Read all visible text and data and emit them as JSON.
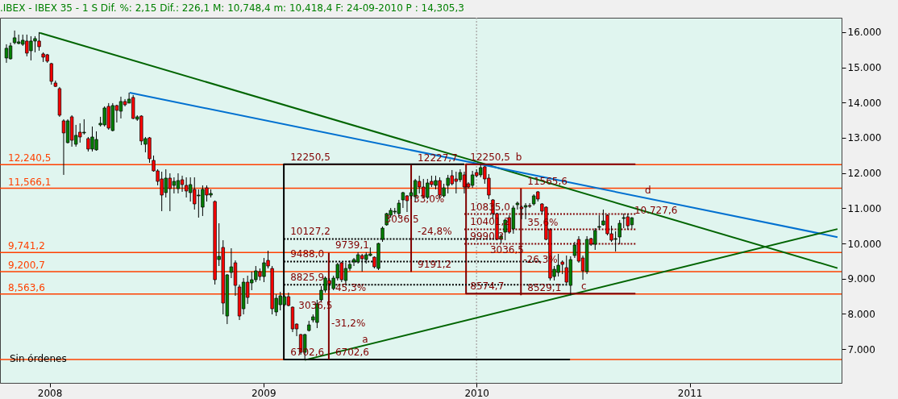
{
  "chart_data": {
    "type": "candlestick",
    "title": ".IBEX - IBEX 35 -  1 S Dif. %: 2,15 Dif.: 226,1 M: 10,748,4 m: 10,418,4 F: 24-09-2010 P : 14,305,3",
    "x": [
      "2007-10-19",
      "2007-10-26",
      "2007-11-02",
      "2007-11-09",
      "2007-11-16",
      "2007-11-23",
      "2007-11-30",
      "2007-12-07",
      "2007-12-14",
      "2007-12-21",
      "2007-12-28",
      "2008-01-04",
      "2008-01-11",
      "2008-01-18",
      "2008-01-25",
      "2008-02-01",
      "2008-02-08",
      "2008-02-15",
      "2008-02-22",
      "2008-02-29",
      "2008-03-07",
      "2008-03-14",
      "2008-03-21",
      "2008-03-28",
      "2008-04-04",
      "2008-04-11",
      "2008-04-18",
      "2008-04-25",
      "2008-05-02",
      "2008-05-09",
      "2008-05-16",
      "2008-05-23",
      "2008-05-30",
      "2008-06-06",
      "2008-06-13",
      "2008-06-20",
      "2008-06-27",
      "2008-07-04",
      "2008-07-11",
      "2008-07-18",
      "2008-07-25",
      "2008-08-01",
      "2008-08-08",
      "2008-08-15",
      "2008-08-22",
      "2008-08-29",
      "2008-09-05",
      "2008-09-12",
      "2008-09-19",
      "2008-09-26",
      "2008-10-03",
      "2008-10-10",
      "2008-10-17",
      "2008-10-24",
      "2008-10-31",
      "2008-11-07",
      "2008-11-14",
      "2008-11-21",
      "2008-11-28",
      "2008-12-05",
      "2008-12-12",
      "2008-12-19",
      "2008-12-26",
      "2009-01-02",
      "2009-01-09",
      "2009-01-16",
      "2009-01-23",
      "2009-01-30",
      "2009-02-06",
      "2009-02-13",
      "2009-02-20",
      "2009-02-27",
      "2009-03-06",
      "2009-03-13",
      "2009-03-20",
      "2009-03-27",
      "2009-04-03",
      "2009-04-10",
      "2009-04-17",
      "2009-04-24",
      "2009-05-01",
      "2009-05-08",
      "2009-05-15",
      "2009-05-22",
      "2009-05-29",
      "2009-06-05",
      "2009-06-12",
      "2009-06-19",
      "2009-06-26",
      "2009-07-03",
      "2009-07-10",
      "2009-07-17",
      "2009-07-24",
      "2009-07-31",
      "2009-08-07",
      "2009-08-14",
      "2009-08-21",
      "2009-08-28",
      "2009-09-04",
      "2009-09-11",
      "2009-09-18",
      "2009-09-25",
      "2009-10-02",
      "2009-10-09",
      "2009-10-16",
      "2009-10-23",
      "2009-10-30",
      "2009-11-06",
      "2009-11-13",
      "2009-11-20",
      "2009-11-27",
      "2009-12-04",
      "2009-12-11",
      "2009-12-18",
      "2009-12-25",
      "2010-01-01",
      "2010-01-08",
      "2010-01-15",
      "2010-01-22",
      "2010-01-29",
      "2010-02-05",
      "2010-02-12",
      "2010-02-19",
      "2010-02-26",
      "2010-03-05",
      "2010-03-12",
      "2010-03-19",
      "2010-03-26",
      "2010-04-02",
      "2010-04-09",
      "2010-04-16",
      "2010-04-23",
      "2010-04-30",
      "2010-05-07",
      "2010-05-14",
      "2010-05-21",
      "2010-05-28",
      "2010-06-04",
      "2010-06-11",
      "2010-06-18",
      "2010-06-25",
      "2010-07-02",
      "2010-07-09",
      "2010-07-16",
      "2010-07-23",
      "2010-07-30",
      "2010-08-06",
      "2010-08-13",
      "2010-08-20",
      "2010-08-27",
      "2010-09-03",
      "2010-09-10",
      "2010-09-17",
      "2010-09-24"
    ],
    "ohlc": [
      [
        15267,
        15656,
        15130,
        15542
      ],
      [
        15244,
        15702,
        15221,
        15611
      ],
      [
        15702,
        16046,
        15656,
        15840
      ],
      [
        15679,
        15931,
        15656,
        15725
      ],
      [
        15656,
        15931,
        15611,
        15771
      ],
      [
        15748,
        15931,
        15313,
        15405
      ],
      [
        15473,
        15885,
        15198,
        15748
      ],
      [
        15748,
        15885,
        15427,
        15817
      ],
      [
        15748,
        16000,
        15473,
        15588
      ],
      [
        15382,
        15427,
        15153,
        15290
      ],
      [
        15359,
        15382,
        15130,
        15176
      ],
      [
        15107,
        15130,
        14511,
        14603
      ],
      [
        14557,
        14626,
        14443,
        14460
      ],
      [
        14397,
        14443,
        13596,
        13641
      ],
      [
        13481,
        13527,
        11947,
        13138
      ],
      [
        12863,
        13527,
        12840,
        13481
      ],
      [
        13596,
        13641,
        12748,
        12931
      ],
      [
        12817,
        13367,
        12748,
        13069
      ],
      [
        13160,
        13412,
        12863,
        13023
      ],
      [
        13138,
        13527,
        13092,
        13160
      ],
      [
        12977,
        13023,
        12611,
        12680
      ],
      [
        12680,
        13321,
        12611,
        13023
      ],
      [
        12657,
        13183,
        12634,
        12954
      ],
      [
        13367,
        13596,
        13321,
        13412
      ],
      [
        13367,
        13893,
        13321,
        13847
      ],
      [
        13893,
        13985,
        13229,
        13275
      ],
      [
        13206,
        13985,
        13183,
        13916
      ],
      [
        13916,
        13939,
        13435,
        13779
      ],
      [
        13756,
        14168,
        13550,
        14031
      ],
      [
        14031,
        14099,
        13893,
        13939
      ],
      [
        13985,
        14282,
        13985,
        14099
      ],
      [
        14145,
        14214,
        13530,
        13550
      ],
      [
        13527,
        13641,
        13481,
        13596
      ],
      [
        13618,
        13641,
        12794,
        12909
      ],
      [
        12817,
        13023,
        12588,
        12977
      ],
      [
        13000,
        13023,
        12290,
        12405
      ],
      [
        12359,
        12496,
        12038,
        12061
      ],
      [
        12061,
        12107,
        11649,
        11763
      ],
      [
        11832,
        12038,
        10916,
        11374
      ],
      [
        11443,
        12107,
        11305,
        11855
      ],
      [
        11855,
        11992,
        10916,
        11557
      ],
      [
        11649,
        11878,
        11420,
        11763
      ],
      [
        11557,
        11992,
        11420,
        11786
      ],
      [
        11809,
        11924,
        11466,
        11672
      ],
      [
        11649,
        11878,
        11305,
        11489
      ],
      [
        11443,
        11878,
        11191,
        11672
      ],
      [
        11535,
        11878,
        10962,
        11122
      ],
      [
        11351,
        11535,
        10733,
        11374
      ],
      [
        11031,
        11649,
        10779,
        11535
      ],
      [
        11580,
        11649,
        11191,
        11374
      ],
      [
        11374,
        11535,
        11305,
        11420
      ],
      [
        11191,
        11220,
        8832,
        8970
      ],
      [
        9542,
        10573,
        9359,
        9634
      ],
      [
        9886,
        10092,
        7985,
        8306
      ],
      [
        7939,
        9130,
        7710,
        9107
      ],
      [
        9176,
        9863,
        9016,
        9336
      ],
      [
        9451,
        9519,
        8512,
        8809
      ],
      [
        8764,
        8832,
        7825,
        7939
      ],
      [
        8145,
        9016,
        7985,
        8901
      ],
      [
        8901,
        9084,
        8283,
        8466
      ],
      [
        8878,
        9199,
        8672,
        8970
      ],
      [
        8970,
        9359,
        8901,
        9222
      ],
      [
        9199,
        9290,
        8947,
        9061
      ],
      [
        9061,
        9588,
        8901,
        9451
      ],
      [
        9519,
        9794,
        9290,
        9359
      ],
      [
        9290,
        9359,
        7985,
        8145
      ],
      [
        8054,
        8557,
        7939,
        8443
      ],
      [
        8260,
        8626,
        8099,
        8512
      ],
      [
        8260,
        8535,
        8214,
        8489
      ],
      [
        8489,
        8603,
        8214,
        8237
      ],
      [
        8191,
        8210,
        7482,
        7573
      ],
      [
        7710,
        7730,
        7367,
        7573
      ],
      [
        7413,
        7430,
        6840,
        6909
      ],
      [
        6909,
        7430,
        6702.6,
        7413
      ],
      [
        7527,
        7802,
        7500,
        7687
      ],
      [
        7825,
        7985,
        7756,
        7916
      ],
      [
        7756,
        8397,
        7596,
        8283
      ],
      [
        8397,
        8787,
        8329,
        8672
      ],
      [
        8672,
        9061,
        8603,
        9016
      ],
      [
        8947,
        9016,
        8672,
        8855
      ],
      [
        8718,
        9084,
        8672,
        9016
      ],
      [
        9016,
        9451,
        8947,
        9405
      ],
      [
        9451,
        9474,
        8901,
        8970
      ],
      [
        8947,
        9451,
        8832,
        9290
      ],
      [
        9290,
        9519,
        9222,
        9405
      ],
      [
        9474,
        9588,
        9359,
        9542
      ],
      [
        9474,
        9749,
        9428,
        9680
      ],
      [
        9657,
        9703,
        9199,
        9565
      ],
      [
        9542,
        9749,
        9428,
        9680
      ],
      [
        9657,
        9886,
        9634,
        9703
      ],
      [
        9611,
        9634,
        9290,
        9336
      ],
      [
        9290,
        10020,
        9245,
        10000
      ],
      [
        10115,
        10481,
        10046,
        10435
      ],
      [
        10527,
        10870,
        10504,
        10848
      ],
      [
        10802,
        11008,
        10733,
        10939
      ],
      [
        10893,
        11008,
        10825,
        10916
      ],
      [
        10848,
        11237,
        10733,
        11145
      ],
      [
        11237,
        11466,
        11008,
        11443
      ],
      [
        11351,
        11374,
        10893,
        11214
      ],
      [
        11351,
        11535,
        11260,
        11443
      ],
      [
        11328,
        11832,
        11191,
        11786
      ],
      [
        11763,
        11924,
        11420,
        11603
      ],
      [
        11603,
        11832,
        11305,
        11328
      ],
      [
        11305,
        11832,
        11260,
        11718
      ],
      [
        11763,
        11924,
        11603,
        11672
      ],
      [
        11649,
        11924,
        11535,
        11786
      ],
      [
        11786,
        11878,
        11260,
        11374
      ],
      [
        11351,
        11695,
        11305,
        11580
      ],
      [
        11649,
        11947,
        11420,
        11855
      ],
      [
        11924,
        12084,
        11649,
        11695
      ],
      [
        11832,
        12038,
        11420,
        11763
      ],
      [
        11809,
        12107,
        11741,
        12015
      ],
      [
        11947,
        12038,
        11420,
        11603
      ],
      [
        11695,
        11741,
        11557,
        11603
      ],
      [
        11649,
        12061,
        11580,
        11947
      ],
      [
        12015,
        12107,
        11878,
        11924
      ],
      [
        11947,
        12227.7,
        11878,
        12153
      ],
      [
        12176,
        12200,
        11695,
        11832
      ],
      [
        11855,
        11970,
        11260,
        11374
      ],
      [
        11237,
        11260,
        10687,
        10848
      ],
      [
        10848,
        10870,
        10092,
        10115
      ],
      [
        10115,
        10275,
        10000,
        10206
      ],
      [
        10321,
        10687,
        10092,
        10664
      ],
      [
        10733,
        10802,
        10275,
        10321
      ],
      [
        10412,
        11077,
        10275,
        11008
      ],
      [
        11100,
        11191,
        10962,
        11145
      ],
      [
        11031,
        11077,
        10687,
        10985
      ],
      [
        11031,
        11145,
        10687,
        11077
      ],
      [
        11077,
        11145,
        11008,
        11054
      ],
      [
        11122,
        11397,
        11077,
        11351
      ],
      [
        11466,
        11489,
        11191,
        11260
      ],
      [
        11122,
        11145,
        10848,
        10916
      ],
      [
        11031,
        11054,
        10092,
        10115
      ],
      [
        10390,
        10435,
        8947,
        9016
      ],
      [
        9061,
        9359,
        8947,
        9267
      ],
      [
        9176,
        9703,
        9061,
        9382
      ],
      [
        9474,
        9519,
        9130,
        9405
      ],
      [
        9313,
        9657,
        8855,
        8901
      ],
      [
        8809,
        9634,
        8529.1,
        9542
      ],
      [
        9657,
        10046,
        9588,
        9954
      ],
      [
        10115,
        10206,
        9451,
        9496
      ],
      [
        9588,
        9657,
        8970,
        9222
      ],
      [
        9199,
        10206,
        9130,
        10115
      ],
      [
        10138,
        10160,
        9931,
        9977
      ],
      [
        9977,
        10435,
        9817,
        10367
      ],
      [
        10458,
        10802,
        10390,
        10481
      ],
      [
        10527,
        10962,
        10504,
        10641
      ],
      [
        10802,
        10825,
        10229,
        10275
      ],
      [
        10275,
        10504,
        10046,
        10092
      ],
      [
        10115,
        10344,
        9771,
        10138
      ],
      [
        10183,
        10664,
        9977,
        10573
      ],
      [
        10710,
        10848,
        10435,
        10733
      ],
      [
        10756,
        10848,
        10390,
        10501.5
      ],
      [
        10530,
        10748.4,
        10418.4,
        10727.6
      ]
    ],
    "colors": [
      "#008000",
      "#008000",
      "#008000",
      "#008000",
      "#008000",
      "#ff0000",
      "#008000",
      "#008000",
      "#ff0000",
      "#ff0000",
      "#ff0000",
      "#ff0000",
      "#ff0000",
      "#ff0000",
      "#ff0000",
      "#008000",
      "#ff0000",
      "#008000",
      "#ff0000",
      "#008000",
      "#ff0000",
      "#008000",
      "#008000",
      "#008000",
      "#008000",
      "#ff0000",
      "#008000",
      "#ff0000",
      "#008000",
      "#ff0000",
      "#008000",
      "#ff0000",
      "#008000",
      "#ff0000",
      "#008000",
      "#ff0000",
      "#ff0000",
      "#ff0000",
      "#ff0000",
      "#008000",
      "#ff0000",
      "#008000",
      "#008000",
      "#ff0000",
      "#ff0000",
      "#008000",
      "#ff0000",
      "#008000",
      "#008000",
      "#ff0000",
      "#008000",
      "#ff0000",
      "#008000",
      "#ff0000",
      "#008000",
      "#008000",
      "#ff0000",
      "#ff0000",
      "#008000",
      "#ff0000",
      "#008000",
      "#008000",
      "#ff0000",
      "#008000",
      "#ff0000",
      "#ff0000",
      "#008000",
      "#008000",
      "#008000",
      "#ff0000",
      "#ff0000",
      "#ff0000",
      "#ff0000",
      "#008000",
      "#008000",
      "#008000",
      "#008000",
      "#008000",
      "#008000",
      "#ff0000",
      "#008000",
      "#008000",
      "#ff0000",
      "#008000",
      "#008000",
      "#008000",
      "#008000",
      "#ff0000",
      "#008000",
      "#008000",
      "#ff0000",
      "#008000",
      "#008000",
      "#008000",
      "#008000",
      "#008000",
      "#008000",
      "#008000",
      "#ff0000",
      "#008000",
      "#008000",
      "#ff0000",
      "#ff0000",
      "#008000",
      "#ff0000",
      "#008000",
      "#ff0000",
      "#008000",
      "#008000",
      "#ff0000",
      "#ff0000",
      "#008000",
      "#ff0000",
      "#ff0000",
      "#008000",
      "#ff0000",
      "#008000",
      "#ff0000",
      "#ff0000",
      "#ff0000",
      "#ff0000",
      "#008000",
      "#008000",
      "#ff0000",
      "#008000",
      "#008000",
      "#ff0000",
      "#008000",
      "#ff0000",
      "#008000",
      "#ff0000",
      "#ff0000",
      "#ff0000",
      "#ff0000",
      "#008000",
      "#008000",
      "#ff0000",
      "#ff0000",
      "#008000",
      "#008000",
      "#ff0000",
      "#ff0000",
      "#008000",
      "#ff0000",
      "#008000",
      "#008000",
      "#008000",
      "#ff0000",
      "#ff0000",
      "#008000",
      "#008000",
      "#008000",
      "#ff0000",
      "#008000"
    ],
    "series": [
      {
        "type": "line",
        "x": [
          "2007-12-15",
          "2011-09-11"
        ],
        "values": [
          15980,
          9300
        ],
        "color": "#006400",
        "line_style": "solid"
      },
      {
        "type": "line",
        "x": [
          "2008-05-17",
          "2011-09-11"
        ],
        "values": [
          14280,
          10180
        ],
        "color": "#0070d0",
        "line_style": "solid"
      },
      {
        "type": "line",
        "x": [
          "2009-03-13",
          "2011-09-11"
        ],
        "values": [
          6690,
          10410
        ],
        "color": "#006400",
        "line_style": "solid"
      },
      {
        "type": "line",
        "x": [
          "2009-12-11",
          "2009-02-05",
          "2009-02-05",
          "2010-06-10"
        ],
        "values": [
          12250.5,
          12250.5,
          6702.6,
          6702.6
        ],
        "color": "#000000",
        "line_style": "solid"
      },
      {
        "type": "line",
        "x": [
          "2010-09-30",
          "2009-12-14",
          "2009-12-14",
          "2010-09-30"
        ],
        "values": [
          12250.5,
          12250.5,
          8574.7,
          8574.7
        ],
        "color": "#800000",
        "line_style": "solid"
      },
      {
        "type": "line",
        "x": [
          "2009-02-05",
          "2010-01-31"
        ],
        "values": [
          10127.2,
          10127.2
        ],
        "color": "#000000",
        "line_style": "dashed"
      },
      {
        "type": "line",
        "x": [
          "2009-02-05",
          "2010-04-20"
        ],
        "values": [
          9488.0,
          9488.0
        ],
        "color": "#000000",
        "line_style": "dashed"
      },
      {
        "type": "line",
        "x": [
          "2009-02-05",
          "2010-06-05"
        ],
        "values": [
          8825.9,
          8825.9
        ],
        "color": "#000000",
        "line_style": "dashed"
      },
      {
        "type": "line",
        "x": [
          "2009-12-11",
          "2010-09-30"
        ],
        "values": [
          10835.0,
          10835.0
        ],
        "color": "#800000",
        "line_style": "dashed"
      },
      {
        "type": "line",
        "x": [
          "2009-12-11",
          "2010-09-30"
        ],
        "values": [
          10401.2,
          10401.2
        ],
        "color": "#800000",
        "line_style": "dashed"
      },
      {
        "type": "line",
        "x": [
          "2009-12-11",
          "2010-09-30"
        ],
        "values": [
          9990.2,
          9990.2
        ],
        "color": "#800000",
        "line_style": "dashed"
      },
      {
        "type": "line",
        "x": [
          "2009-04-23",
          "2009-04-23"
        ],
        "values": [
          6702.6,
          9739.1
        ],
        "color": "#800000",
        "line_style": "solid"
      },
      {
        "type": "line",
        "x": [
          "2009-09-11",
          "2009-09-11"
        ],
        "values": [
          9191.2,
          12227.7
        ],
        "color": "#800000",
        "line_style": "solid"
      },
      {
        "type": "line",
        "x": [
          "2010-03-18",
          "2010-03-18"
        ],
        "values": [
          8529.1,
          11565.6
        ],
        "color": "#800000",
        "line_style": "solid"
      }
    ],
    "xlim": [
      "2007-10-08",
      "2011-09-18"
    ],
    "xticks": [
      "2008",
      "2009",
      "2010",
      "2011"
    ],
    "ylim": [
      6040,
      16410
    ],
    "yticks": [
      {
        "value": 7000,
        "label": "7.000"
      },
      {
        "value": 8000,
        "label": "8.000"
      },
      {
        "value": 9000,
        "label": "9.000"
      },
      {
        "value": 10000,
        "label": "10.000"
      },
      {
        "value": 11000,
        "label": "11.000"
      },
      {
        "value": 12000,
        "label": "12.000"
      },
      {
        "value": 13000,
        "label": "13.000"
      },
      {
        "value": 14000,
        "label": "14.000"
      },
      {
        "value": 15000,
        "label": "15.000"
      },
      {
        "value": 16000,
        "label": "16.000"
      }
    ],
    "ref_lines": [
      {
        "axis": "y",
        "value": 12240.5,
        "label": "12,240,5",
        "color": "#ff4000"
      },
      {
        "axis": "y",
        "value": 11566.1,
        "label": "11,566,1",
        "color": "#ff4000"
      },
      {
        "axis": "y",
        "value": 9741.2,
        "label": "9,741,2",
        "color": "#ff4000"
      },
      {
        "axis": "y",
        "value": 9200.7,
        "label": "9,200,7",
        "color": "#ff4000"
      },
      {
        "axis": "y",
        "value": 8563.6,
        "label": "8,563,6",
        "color": "#ff4000"
      },
      {
        "axis": "y",
        "value": 6702.6,
        "label": null,
        "color": "#ff4000"
      },
      {
        "axis": "x",
        "value": "2010",
        "label": null,
        "color": "#b0b0b0",
        "line_style": "dashed"
      }
    ],
    "annotations": [
      {
        "text": "12250,5",
        "x": "2009-02-12",
        "y": 12250.5
      },
      {
        "text": "10127,2",
        "x": "2009-02-12",
        "y": 10127.2
      },
      {
        "text": "9488,0",
        "x": "2009-02-12",
        "y": 9488.0
      },
      {
        "text": "8825,9",
        "x": "2009-02-12",
        "y": 8825.9
      },
      {
        "text": "6702,6",
        "x": "2009-02-12",
        "y": 6702.6
      },
      {
        "text": "12250,5",
        "x": "2009-12-17",
        "y": 12250.5
      },
      {
        "text": "10835,0",
        "x": "2009-12-17",
        "y": 10835.0
      },
      {
        "text": "10401,2",
        "x": "2009-12-17",
        "y": 10401.2
      },
      {
        "text": "9990,2",
        "x": "2009-12-17",
        "y": 9990.2
      },
      {
        "text": "8574,7",
        "x": "2009-12-17",
        "y": 8574.7
      },
      {
        "text": "3036,5",
        "x": "2009-02-26",
        "y": 8031
      },
      {
        "text": "9739,1",
        "x": "2009-04-30",
        "y": 9739.1
      },
      {
        "text": "45,3%",
        "x": "2009-04-30",
        "y": 8535
      },
      {
        "text": "-31,2%",
        "x": "2009-04-23",
        "y": 7527
      },
      {
        "text": "6702,6",
        "x": "2009-04-30",
        "y": 6702.6
      },
      {
        "text": "3036,5",
        "x": "2009-07-24",
        "y": 10481
      },
      {
        "text": "12227,7",
        "x": "2009-09-18",
        "y": 12227.7
      },
      {
        "text": "33,0%",
        "x": "2009-09-11",
        "y": 11054
      },
      {
        "text": "-24,8%",
        "x": "2009-09-18",
        "y": 10127.2
      },
      {
        "text": "9191,2",
        "x": "2009-09-18",
        "y": 9191.2
      },
      {
        "text": "11565,6",
        "x": "2010-03-25",
        "y": 11565.6
      },
      {
        "text": "35,6%",
        "x": "2010-03-25",
        "y": 10390
      },
      {
        "text": "3036,5",
        "x": "2010-01-20",
        "y": 9600
      },
      {
        "text": "-26,3%",
        "x": "2010-03-18",
        "y": 9336
      },
      {
        "text": "8529,1",
        "x": "2010-03-25",
        "y": 8529.1
      },
      {
        "text": "a",
        "x": "2009-06-15",
        "y": 7073
      },
      {
        "text": "b",
        "x": "2010-03-05",
        "y": 12250.5
      },
      {
        "text": "c",
        "x": "2010-06-25",
        "y": 8574.7
      },
      {
        "text": "d",
        "x": "2010-10-12",
        "y": 11312
      },
      {
        "text": "10.727,6",
        "x": "2010-09-24",
        "y": 10727.6
      },
      "Sin órdenes"
    ]
  }
}
